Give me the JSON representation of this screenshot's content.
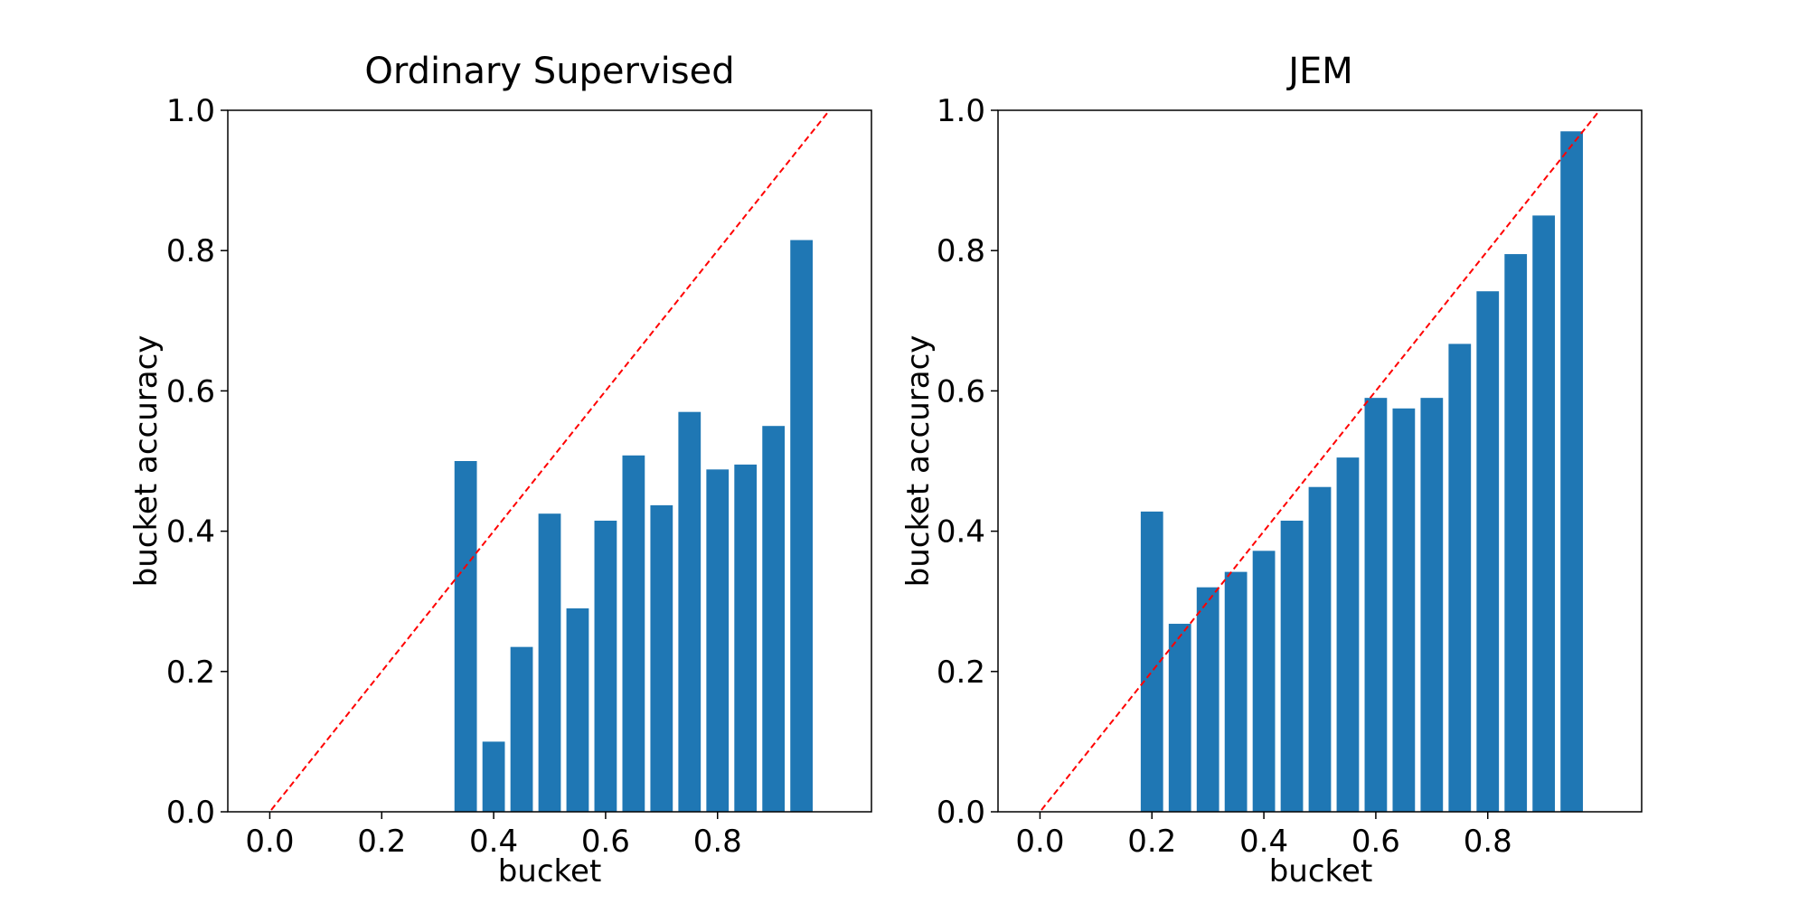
{
  "chart_data": [
    {
      "type": "bar",
      "title": "Ordinary Supervised",
      "xlabel": "bucket",
      "ylabel": "bucket accuracy",
      "xlim": [
        -0.075,
        1.075
      ],
      "ylim": [
        0.0,
        1.0
      ],
      "x_ticks": [
        "0.0",
        "0.2",
        "0.4",
        "0.6",
        "0.8"
      ],
      "y_ticks": [
        "0.0",
        "0.2",
        "0.4",
        "0.6",
        "0.8",
        "1.0"
      ],
      "bar_width": 0.04,
      "bar_color": "#1f77b4",
      "reference_line": {
        "from": [
          0,
          0
        ],
        "to": [
          1,
          1
        ],
        "style": "dashed",
        "color": "#ff0000"
      },
      "x": [
        0.35,
        0.4,
        0.45,
        0.5,
        0.55,
        0.6,
        0.65,
        0.7,
        0.75,
        0.8,
        0.85,
        0.9,
        0.95
      ],
      "values": [
        0.5,
        0.1,
        0.235,
        0.425,
        0.29,
        0.415,
        0.508,
        0.437,
        0.57,
        0.488,
        0.495,
        0.55,
        0.815
      ],
      "grid": false,
      "legend": "none"
    },
    {
      "type": "bar",
      "title": "JEM",
      "xlabel": "bucket",
      "ylabel": "bucket accuracy",
      "xlim": [
        -0.075,
        1.075
      ],
      "ylim": [
        0.0,
        1.0
      ],
      "x_ticks": [
        "0.0",
        "0.2",
        "0.4",
        "0.6",
        "0.8"
      ],
      "y_ticks": [
        "0.0",
        "0.2",
        "0.4",
        "0.6",
        "0.8",
        "1.0"
      ],
      "bar_width": 0.04,
      "bar_color": "#1f77b4",
      "reference_line": {
        "from": [
          0,
          0
        ],
        "to": [
          1,
          1
        ],
        "style": "dashed",
        "color": "#ff0000"
      },
      "x": [
        0.2,
        0.25,
        0.3,
        0.35,
        0.4,
        0.45,
        0.5,
        0.55,
        0.6,
        0.65,
        0.7,
        0.75,
        0.8,
        0.85,
        0.9,
        0.95
      ],
      "values": [
        0.428,
        0.268,
        0.32,
        0.342,
        0.372,
        0.415,
        0.463,
        0.505,
        0.59,
        0.575,
        0.59,
        0.667,
        0.742,
        0.795,
        0.85,
        0.97
      ],
      "grid": false,
      "legend": "none"
    }
  ]
}
